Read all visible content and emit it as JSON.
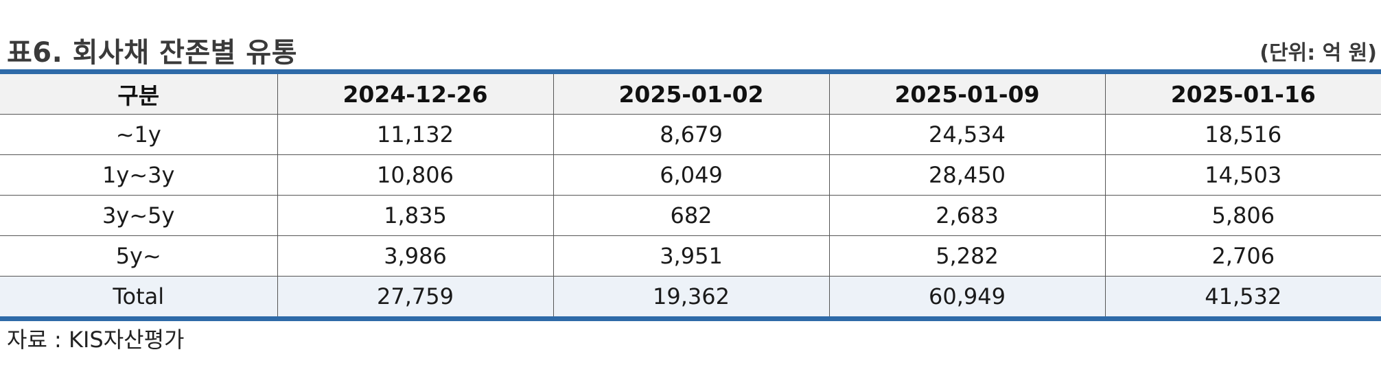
{
  "header": {
    "title": "표6. 회사채 잔존별 유통",
    "unit": "(단위: 억 원)"
  },
  "table": {
    "columns": [
      "구분",
      "2024-12-26",
      "2025-01-02",
      "2025-01-09",
      "2025-01-16"
    ],
    "rows": [
      [
        "~1y",
        "11,132",
        "8,679",
        "24,534",
        "18,516"
      ],
      [
        "1y~3y",
        "10,806",
        "6,049",
        "28,450",
        "14,503"
      ],
      [
        "3y~5y",
        "1,835",
        "682",
        "2,683",
        "5,806"
      ],
      [
        "5y~",
        "3,986",
        "3,951",
        "5,282",
        "2,706"
      ],
      [
        "Total",
        "27,759",
        "19,362",
        "60,949",
        "41,532"
      ]
    ]
  },
  "footer": {
    "source": "자료 : KIS자산평가"
  },
  "colors": {
    "accent_rule": "#2e6aa8",
    "header_bg": "#f2f2f2",
    "total_bg": "#edf2f8"
  }
}
